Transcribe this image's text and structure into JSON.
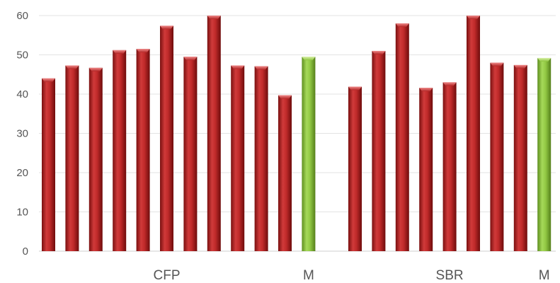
{
  "chart_data": {
    "type": "bar",
    "title": "",
    "xlabel": "",
    "ylabel": "",
    "ylim": [
      0,
      60
    ],
    "yticks": [
      0,
      10,
      20,
      30,
      40,
      50,
      60
    ],
    "grid": "horizontal",
    "legend": "none",
    "colors": {
      "bar": "#b52525",
      "bar_highlight": "#8cc43c",
      "grid": "#e3e3e3"
    },
    "groups": [
      {
        "bars": [
          {
            "value": 44,
            "highlight": false
          },
          {
            "value": 47.3,
            "highlight": false
          },
          {
            "value": 46.7,
            "highlight": false
          },
          {
            "value": 51.2,
            "highlight": false
          },
          {
            "value": 51.5,
            "highlight": false
          },
          {
            "value": 57.4,
            "highlight": false
          },
          {
            "value": 49.5,
            "highlight": false
          },
          {
            "value": 60,
            "highlight": false
          },
          {
            "value": 47.3,
            "highlight": false
          },
          {
            "value": 47.1,
            "highlight": false
          },
          {
            "value": 39.7,
            "highlight": false
          },
          {
            "value": 49.5,
            "highlight": true
          }
        ],
        "labels": [
          {
            "text": "CFP",
            "at_bar": 5
          },
          {
            "text": "M",
            "at_bar": 11
          }
        ]
      },
      {
        "bars": [
          {
            "value": 41.9,
            "highlight": false
          },
          {
            "value": 51,
            "highlight": false
          },
          {
            "value": 58,
            "highlight": false
          },
          {
            "value": 41.6,
            "highlight": false
          },
          {
            "value": 43,
            "highlight": false
          },
          {
            "value": 60,
            "highlight": false
          },
          {
            "value": 48,
            "highlight": false
          },
          {
            "value": 47.4,
            "highlight": false
          },
          {
            "value": 49.2,
            "highlight": true
          }
        ],
        "labels": [
          {
            "text": "SBR",
            "at_bar": 4
          },
          {
            "text": "M",
            "at_bar": 8
          }
        ]
      }
    ]
  }
}
